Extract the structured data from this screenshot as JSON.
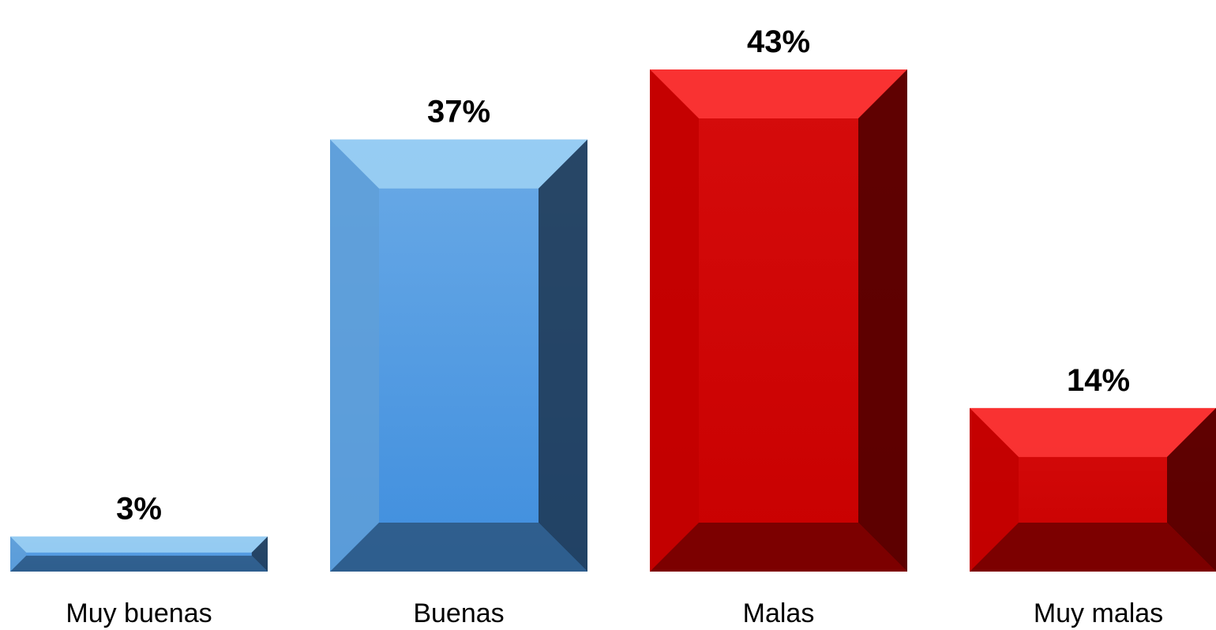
{
  "chart_data": {
    "type": "bar",
    "title": "",
    "xlabel": "",
    "ylabel": "",
    "categories": [
      "Muy buenas",
      "Buenas",
      "Malas",
      "Muy malas"
    ],
    "values": [
      3,
      37,
      43,
      14
    ],
    "value_labels": [
      "3%",
      "37%",
      "43%",
      "14%"
    ],
    "unit": "%",
    "ylim": [
      0,
      43
    ],
    "grid": false,
    "legend": "none",
    "bar_colors": [
      "#4a90d9",
      "#4a90d9",
      "#d40000",
      "#d40000"
    ]
  }
}
